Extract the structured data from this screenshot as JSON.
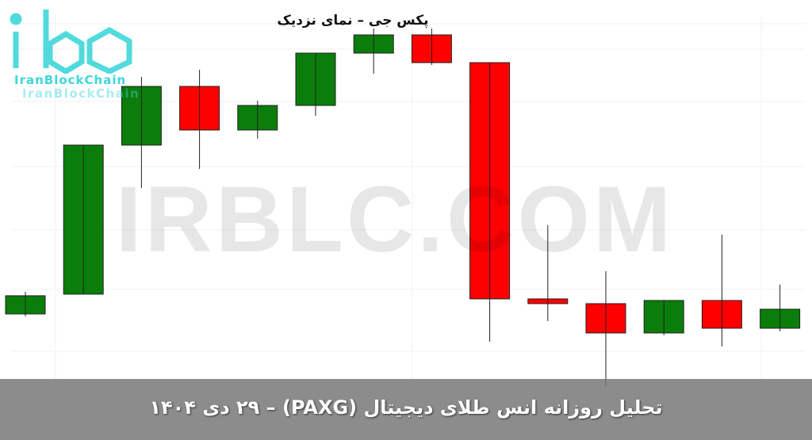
{
  "chart_data": {
    "type": "candlestick",
    "title": "پکس جی – نمای نزدیک",
    "note_units": "relative price (no axis printed)",
    "colors": {
      "up": "#0a7d0a",
      "down": "#ff0000"
    },
    "grid": true,
    "candles": [
      {
        "open": 104,
        "high": 132,
        "low": 101,
        "close": 127
      },
      {
        "open": 129,
        "high": 317,
        "low": 129,
        "close": 317
      },
      {
        "open": 317,
        "high": 403,
        "low": 263,
        "close": 391
      },
      {
        "open": 391,
        "high": 412,
        "low": 287,
        "close": 336
      },
      {
        "open": 336,
        "high": 373,
        "low": 325,
        "close": 367
      },
      {
        "open": 367,
        "high": 433,
        "low": 354,
        "close": 433
      },
      {
        "open": 433,
        "high": 464,
        "low": 407,
        "close": 456
      },
      {
        "open": 456,
        "high": 464,
        "low": 418,
        "close": 421
      },
      {
        "open": 421,
        "high": 421,
        "low": 69,
        "close": 123
      },
      {
        "open": 123,
        "high": 216,
        "low": 95,
        "close": 117
      },
      {
        "open": 117,
        "high": 158,
        "low": 13,
        "close": 80
      },
      {
        "open": 80,
        "high": 121,
        "low": 77,
        "close": 121
      },
      {
        "open": 121,
        "high": 204,
        "low": 63,
        "close": 86
      },
      {
        "open": 86,
        "high": 141,
        "low": 82,
        "close": 110
      }
    ]
  },
  "watermark": "IRBLC.COM",
  "logo": {
    "text": "IranBlockChain"
  },
  "caption": "تحلیل روزانه  انس طلای دیجیتال (PAXG) – ۲۹ دی ۱۴۰۴"
}
